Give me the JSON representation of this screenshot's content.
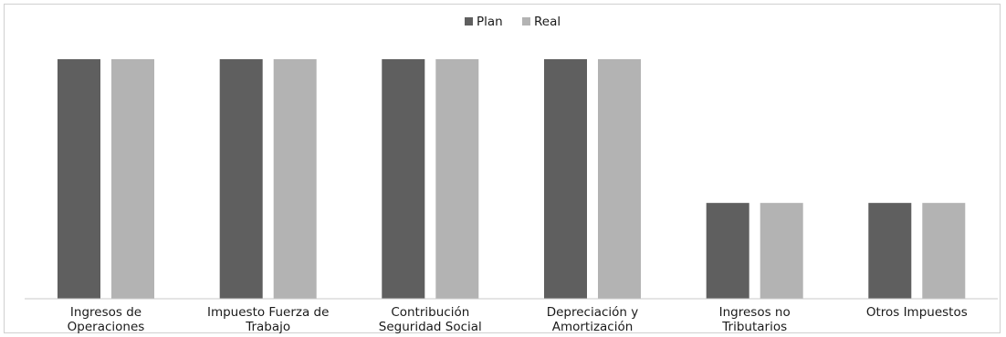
{
  "chart_data": {
    "type": "bar",
    "title": "",
    "xlabel": "",
    "ylabel": "",
    "legend_position": "top-center",
    "grid": false,
    "ylim": [
      0,
      1
    ],
    "categories": [
      [
        "Ingresos de",
        "Operaciones"
      ],
      [
        "Impuesto Fuerza de",
        "Trabajo"
      ],
      [
        "Contribución",
        "Seguridad Social"
      ],
      [
        "Depreciación y",
        "Amortización"
      ],
      [
        "Ingresos no",
        "Tributarios"
      ],
      [
        "Otros Impuestos"
      ]
    ],
    "series": [
      {
        "name": "Plan",
        "color": "#5f5f5f",
        "values": [
          1,
          1,
          1,
          1,
          0.4,
          0.4
        ]
      },
      {
        "name": "Real",
        "color": "#b3b3b3",
        "values": [
          1,
          1,
          1,
          1,
          0.4,
          0.4
        ]
      }
    ]
  }
}
